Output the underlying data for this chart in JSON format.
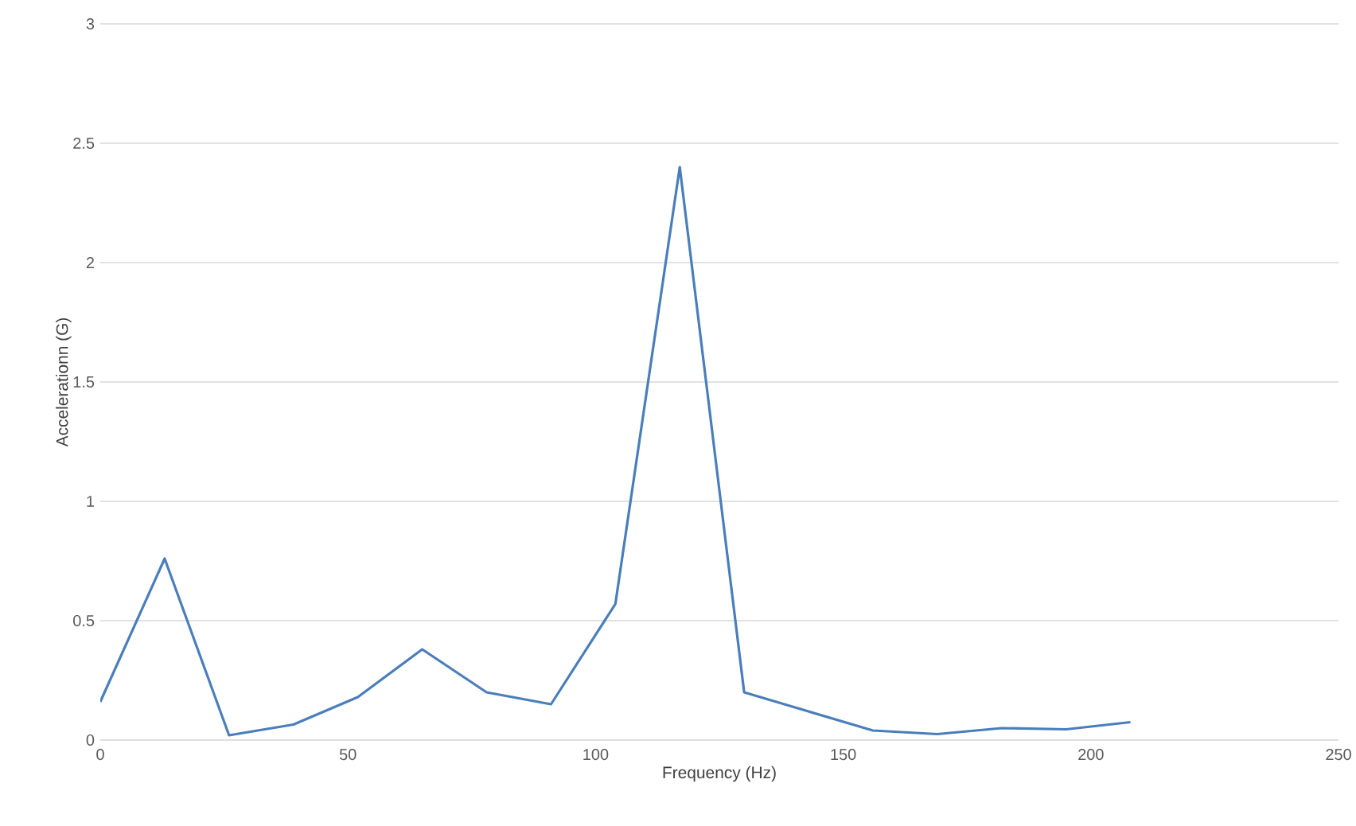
{
  "chart_data": {
    "type": "line",
    "xlabel": "Frequency (Hz)",
    "ylabel": "Accelerationn (G)",
    "x": [
      0,
      13,
      26,
      39,
      52,
      65,
      78,
      91,
      104,
      117,
      130,
      143,
      156,
      169,
      182,
      195,
      208
    ],
    "series": [
      {
        "color": "#4a7ebb",
        "values": [
          0.16,
          0.76,
          0.02,
          0.065,
          0.18,
          0.38,
          0.2,
          0.15,
          0.57,
          2.4,
          0.2,
          0.12,
          0.04,
          0.025,
          0.05,
          0.045,
          0.075
        ]
      }
    ],
    "xlim": [
      0,
      250
    ],
    "ylim": [
      0,
      3
    ],
    "xticks": [
      0,
      50,
      100,
      150,
      200,
      250
    ],
    "yticks": [
      0,
      0.5,
      1,
      1.5,
      2,
      2.5,
      3
    ],
    "grid": "y",
    "marker": "none",
    "line_style": "solid",
    "legend": false
  }
}
